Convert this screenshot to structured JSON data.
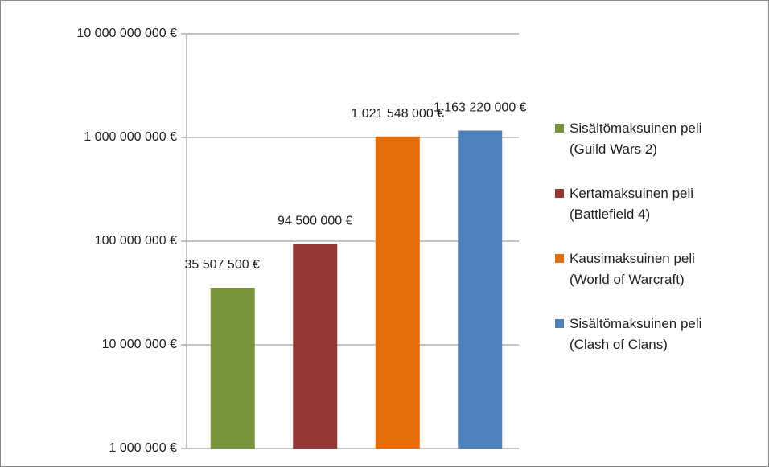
{
  "chart_data": {
    "type": "bar",
    "log_scale": true,
    "grid": true,
    "legend": "right",
    "ylim": [
      1000000,
      10000000000
    ],
    "yticks": [
      {
        "value": 1000000,
        "label": "1 000 000 €"
      },
      {
        "value": 10000000,
        "label": "10 000 000 €"
      },
      {
        "value": 100000000,
        "label": "100 000 000 €"
      },
      {
        "value": 1000000000,
        "label": "1 000 000 000 €"
      },
      {
        "value": 10000000000,
        "label": "10 000 000 000 €"
      }
    ],
    "series": [
      {
        "name": "Sisältömaksuinen peli\n(Guild Wars 2)",
        "color": "#77933c",
        "values": [
          35507500
        ],
        "value_labels": [
          "35 507 500 €"
        ]
      },
      {
        "name": "Kertamaksuinen peli\n(Battlefield 4)",
        "color": "#953735",
        "values": [
          94500000
        ],
        "value_labels": [
          "94 500 000 €"
        ]
      },
      {
        "name": "Kausimaksuinen peli\n(World of Warcraft)",
        "color": "#e46c0a",
        "values": [
          1021548000
        ],
        "value_labels": [
          "1 021 548 000 €"
        ]
      },
      {
        "name": "Sisältömaksuinen peli\n(Clash of Clans)",
        "color": "#4f81bd",
        "values": [
          1163220000
        ],
        "value_labels": [
          "1 163 220 000 €"
        ]
      }
    ]
  }
}
